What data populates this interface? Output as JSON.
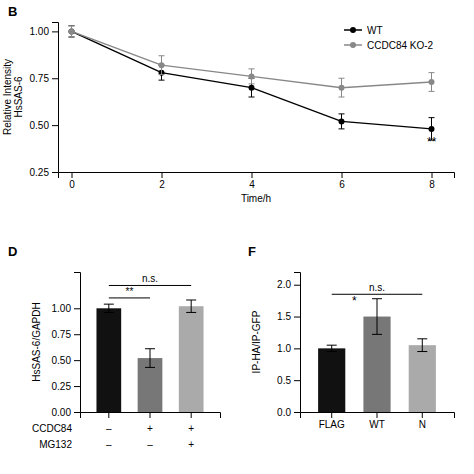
{
  "chart_data": [
    {
      "type": "line",
      "title": "B",
      "x": [
        0,
        2,
        4,
        6,
        8
      ],
      "xlim": [
        -0.3,
        8.5
      ],
      "xticks": [
        0,
        2,
        4,
        6,
        8
      ],
      "ylim": [
        0.25,
        1.05
      ],
      "yticks": [
        0.25,
        {
          "value": 0.5,
          "label": "0.50"
        },
        {
          "value": 0.75,
          "label": "0.75"
        },
        {
          "value": 1.0,
          "label": "1.00"
        }
      ],
      "x_label": "Time/h",
      "y_label": "Relative Intensity\nHsSAS-6",
      "legend": "upper right",
      "series": [
        {
          "name": "WT",
          "color": "#000000",
          "marker": "circle",
          "line_style": "solid",
          "values": [
            1.0,
            0.78,
            0.7,
            0.52,
            0.48
          ],
          "errors": [
            0.03,
            0.04,
            0.05,
            0.04,
            0.06
          ]
        },
        {
          "name": "CCDC84 KO-2",
          "color": "#888888",
          "marker": "circle",
          "line_style": "solid",
          "values": [
            1.0,
            0.82,
            0.76,
            0.7,
            0.73
          ],
          "errors": [
            0.03,
            0.05,
            0.04,
            0.05,
            0.05
          ]
        }
      ],
      "annotations": [
        {
          "text": "**",
          "x": 7.9,
          "y": 0.39
        }
      ]
    },
    {
      "type": "bar",
      "title": "D",
      "categories": [
        null,
        null,
        null
      ],
      "values": [
        1.0,
        0.52,
        1.02
      ],
      "errors": [
        0.04,
        0.09,
        0.06
      ],
      "colors": [
        "#111111",
        "#777777",
        "#aaaaaa"
      ],
      "ylim": [
        0,
        1.35
      ],
      "yticks": [
        {
          "value": 0,
          "label": "0.00"
        },
        0.25,
        {
          "value": 0.5,
          "label": "0.50"
        },
        0.75,
        {
          "value": 1.0,
          "label": "1.00"
        }
      ],
      "y_label": "HsSAS-6/GAPDH",
      "condition_rows": [
        {
          "name": "CCDC84",
          "values": [
            "–",
            "+",
            "+"
          ]
        },
        {
          "name": "MG132",
          "values": [
            "–",
            "–",
            "+"
          ]
        }
      ],
      "brackets": [
        {
          "from": 0,
          "to": 1,
          "y": 1.1,
          "text": "**"
        },
        {
          "from": 0,
          "to": 2,
          "y": 1.22,
          "text": "n.s."
        }
      ]
    },
    {
      "type": "bar",
      "title": "F",
      "categories": [
        "FLAG",
        "WT",
        "N"
      ],
      "values": [
        1.0,
        1.5,
        1.05
      ],
      "errors": [
        0.05,
        0.28,
        0.1
      ],
      "colors": [
        "#111111",
        "#777777",
        "#aaaaaa"
      ],
      "ylim": [
        0,
        2.2
      ],
      "yticks": [
        {
          "value": 0,
          "label": "0.0"
        },
        0.5,
        {
          "value": 1.0,
          "label": "1.0"
        },
        1.5,
        {
          "value": 2.0,
          "label": "2.0"
        }
      ],
      "y_label": "IP-HA/IP-GFP",
      "brackets": [
        {
          "from": 0,
          "to": 2,
          "y": 1.85,
          "text": "n.s."
        }
      ],
      "annotations": [
        {
          "text": "*",
          "x": 0.5,
          "y": 1.68
        }
      ]
    }
  ]
}
